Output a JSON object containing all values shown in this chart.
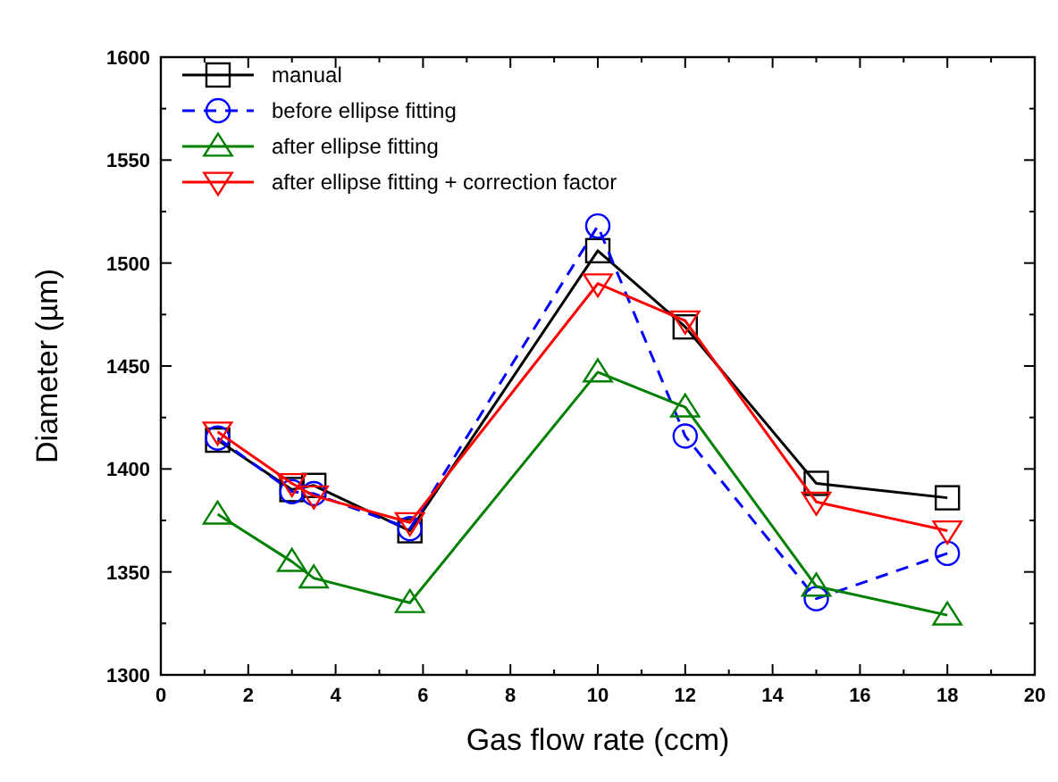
{
  "chart_data": {
    "type": "line",
    "xlabel": "Gas flow rate (ccm)",
    "ylabel": "Diameter (µm)",
    "x": [
      1.3,
      3,
      3.5,
      5.7,
      10,
      12,
      15,
      18
    ],
    "series": [
      {
        "name": "manual",
        "color": "#000000",
        "marker": "square",
        "line_style": "solid",
        "values": [
          1414,
          1390,
          1392,
          1370,
          1506,
          1469,
          1393,
          1386
        ]
      },
      {
        "name": "before ellipse fitting",
        "color": "#0000ff",
        "marker": "circle",
        "line_style": "dashed",
        "values": [
          1415,
          1389,
          1388,
          1371,
          1518,
          1416,
          1337,
          1359
        ]
      },
      {
        "name": "after ellipse fitting",
        "color": "#008000",
        "marker": "triangle",
        "line_style": "solid",
        "values": [
          1378,
          1355,
          1347,
          1335,
          1447,
          1430,
          1343,
          1329
        ]
      },
      {
        "name": "after ellipse fitting + correction factor",
        "color": "#ff0000",
        "marker": "triangle-down",
        "line_style": "solid",
        "values": [
          1418,
          1393,
          1387,
          1374,
          1490,
          1472,
          1384,
          1370
        ]
      }
    ],
    "xlim": [
      0,
      20
    ],
    "xticks": [
      0,
      2,
      4,
      6,
      8,
      10,
      12,
      14,
      16,
      18,
      20
    ],
    "ylim": [
      1300,
      1600
    ],
    "yticks": [
      1300,
      1350,
      1400,
      1450,
      1500,
      1550,
      1600
    ],
    "legend": "top left",
    "grid": false
  }
}
